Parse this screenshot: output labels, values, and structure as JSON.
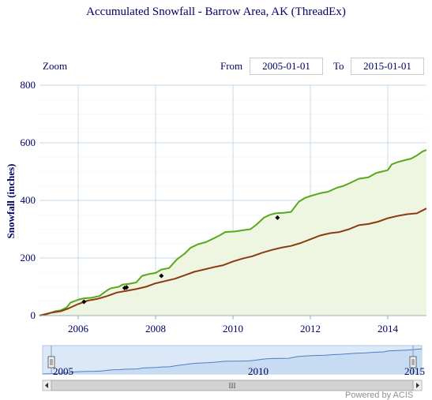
{
  "chart_title": "Accumulated Snowfall - Barrow Area, AK (ThreadEx)",
  "range_selector": {
    "zoom_label": "Zoom",
    "from_label": "From",
    "from_value": "2005-01-01",
    "to_label": "To",
    "to_value": "2015-01-01"
  },
  "navigator": {
    "tick_labels": [
      "2005",
      "2010",
      "2015"
    ],
    "scroll_grip": "III"
  },
  "credit": "Powered by ACIS",
  "colors": {
    "title": "#000066",
    "series_green": "#58a81c",
    "series_brown": "#8b3a12",
    "area_fill": "#eef6e2",
    "grid": "#c5d9e8",
    "navigator_fill": "#c7dcf2",
    "navigator_line": "#4f7fc0"
  },
  "chart_data": {
    "type": "line",
    "title": "Accumulated Snowfall - Barrow Area, AK (ThreadEx)",
    "xlabel": "",
    "ylabel": "Snowfall (inches)",
    "xlim": [
      2005.0,
      2015.0
    ],
    "ylim": [
      0,
      800
    ],
    "x_ticks": [
      "2006",
      "2008",
      "2010",
      "2012",
      "2014"
    ],
    "x_tick_values": [
      2006,
      2008,
      2010,
      2012,
      2014
    ],
    "y_ticks": [
      "0",
      "200",
      "400",
      "600",
      "800"
    ],
    "y_tick_values": [
      0,
      200,
      400,
      600,
      800
    ],
    "grid": true,
    "legend": "none",
    "series": [
      {
        "color": "#58a81c",
        "fill": "#eef6e2",
        "x": [
          2005.0,
          2005.2,
          2005.4,
          2005.55,
          2005.7,
          2005.8,
          2006.0,
          2006.15,
          2006.35,
          2006.55,
          2006.75,
          2006.85,
          2007.05,
          2007.15,
          2007.3,
          2007.5,
          2007.65,
          2007.85,
          2008.0,
          2008.15,
          2008.35,
          2008.55,
          2008.75,
          2008.9,
          2009.1,
          2009.3,
          2009.5,
          2009.65,
          2009.8,
          2010.05,
          2010.2,
          2010.45,
          2010.6,
          2010.8,
          2010.95,
          2011.1,
          2011.3,
          2011.5,
          2011.7,
          2011.85,
          2012.0,
          2012.25,
          2012.45,
          2012.7,
          2012.85,
          2013.05,
          2013.25,
          2013.5,
          2013.7,
          2013.85,
          2014.0,
          2014.1,
          2014.25,
          2014.45,
          2014.6,
          2014.75,
          2014.9,
          2015.0
        ],
        "y": [
          0,
          5,
          15,
          18,
          28,
          45,
          55,
          60,
          62,
          68,
          88,
          95,
          100,
          108,
          110,
          115,
          138,
          145,
          148,
          160,
          165,
          195,
          215,
          235,
          248,
          255,
          268,
          278,
          290,
          292,
          295,
          300,
          315,
          340,
          350,
          355,
          357,
          360,
          395,
          408,
          415,
          425,
          430,
          445,
          450,
          462,
          475,
          480,
          495,
          500,
          505,
          525,
          533,
          540,
          545,
          556,
          570,
          575
        ]
      },
      {
        "color": "#8b3a12",
        "x": [
          2005.0,
          2005.3,
          2005.55,
          2005.75,
          2006.0,
          2006.25,
          2006.5,
          2006.75,
          2007.0,
          2007.25,
          2007.5,
          2007.75,
          2008.0,
          2008.25,
          2008.5,
          2008.75,
          2009.0,
          2009.25,
          2009.5,
          2009.75,
          2010.0,
          2010.25,
          2010.5,
          2010.75,
          2011.0,
          2011.25,
          2011.5,
          2011.75,
          2012.0,
          2012.25,
          2012.5,
          2012.75,
          2013.0,
          2013.25,
          2013.5,
          2013.75,
          2014.0,
          2014.25,
          2014.5,
          2014.75,
          2015.0
        ],
        "y": [
          0,
          10,
          15,
          25,
          40,
          52,
          58,
          68,
          80,
          86,
          92,
          100,
          112,
          120,
          128,
          140,
          152,
          160,
          168,
          175,
          188,
          198,
          206,
          218,
          228,
          236,
          242,
          252,
          265,
          278,
          286,
          290,
          300,
          314,
          318,
          326,
          338,
          346,
          352,
          355,
          372
        ]
      }
    ],
    "markers": {
      "x": [
        2006.15,
        2007.2,
        2007.25,
        2008.15,
        2011.15
      ],
      "y": [
        48,
        96,
        98,
        138,
        340
      ]
    }
  }
}
